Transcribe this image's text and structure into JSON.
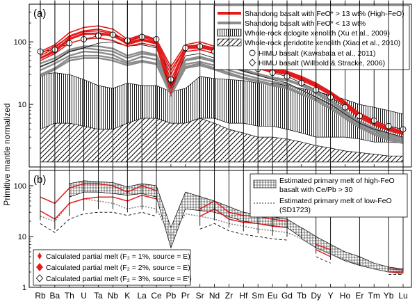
{
  "figure": {
    "ylabel": "Primitive mantle normalized",
    "elements": [
      "Rb",
      "Ba",
      "Th",
      "U",
      "Ta",
      "Nb",
      "K",
      "La",
      "Ce",
      "Pb",
      "Pr",
      "Sr",
      "Nd",
      "Zr",
      "Hf",
      "Sm",
      "Eu",
      "Gd",
      "Tb",
      "Dy",
      "Y",
      "Ho",
      "Er",
      "Tm",
      "Yb",
      "Lu"
    ]
  },
  "chart_data": [
    {
      "panel": "(a)",
      "type": "line",
      "scale": "log",
      "ylim": [
        1,
        400
      ],
      "yticks": [
        {
          "value": 10,
          "label": "10"
        },
        {
          "value": 100,
          "label": "100"
        }
      ],
      "legend_position": "top-right",
      "legend": [
        {
          "key": "high",
          "label": "Shandong basalt with FeO* > 13 wt% (High-FeO)"
        },
        {
          "key": "low",
          "label": "Shandong basalt with FeO* < 13 wt%"
        },
        {
          "key": "eclogite",
          "label": "Whole-rock eclogite xenolith (Xu et al., 2009)"
        },
        {
          "key": "peridotite",
          "label": "Whole-rock peridotite xenolith (Xiao et al., 2010)"
        },
        {
          "key": "himu_k",
          "label": "HIMU basalt (Kawabata et al., 2011)"
        },
        {
          "key": "himu_w",
          "label": "HIMU basalt (Willbold & Stracke, 2006)"
        }
      ],
      "series": {
        "high": [
          [
            55,
            70,
            110,
            135,
            135,
            125,
            95,
            110,
            95,
            20,
            80,
            85,
            75,
            55,
            45,
            40,
            35,
            32,
            26,
            20,
            15,
            10,
            6.5,
            5,
            4,
            3.5
          ],
          [
            60,
            80,
            125,
            150,
            160,
            140,
            100,
            120,
            100,
            30,
            85,
            90,
            80,
            60,
            48,
            42,
            36,
            33,
            27,
            21,
            16,
            11,
            7,
            5.5,
            4.3,
            3.6
          ],
          [
            50,
            65,
            95,
            110,
            115,
            105,
            85,
            95,
            85,
            15,
            70,
            75,
            65,
            50,
            42,
            37,
            33,
            30,
            24,
            19,
            14,
            9.5,
            6,
            4.7,
            3.8,
            3.3
          ],
          [
            70,
            90,
            140,
            170,
            180,
            160,
            110,
            130,
            110,
            40,
            90,
            100,
            85,
            62,
            50,
            44,
            38,
            34,
            28,
            22,
            16,
            11,
            7.2,
            5.6,
            4.4,
            3.7
          ],
          [
            55,
            75,
            115,
            130,
            140,
            130,
            90,
            105,
            92,
            25,
            78,
            80,
            72,
            52,
            44,
            39,
            34,
            31,
            25,
            20,
            15,
            10,
            6.3,
            4.9,
            3.9,
            3.4
          ],
          [
            65,
            85,
            120,
            145,
            150,
            135,
            105,
            125,
            105,
            35,
            82,
            88,
            78,
            57,
            46,
            41,
            35,
            32,
            26,
            21,
            15.5,
            10.5,
            6.8,
            5.2,
            4.1,
            3.5
          ]
        ],
        "low": [
          [
            40,
            50,
            70,
            80,
            75,
            70,
            55,
            65,
            60,
            18,
            50,
            55,
            48,
            40,
            34,
            30,
            26,
            24,
            20,
            15,
            11,
            7.5,
            5,
            4,
            3.2,
            2.8
          ],
          [
            30,
            38,
            55,
            60,
            60,
            55,
            45,
            50,
            45,
            15,
            40,
            45,
            38,
            32,
            27,
            24,
            21,
            19,
            15,
            12,
            9,
            6.5,
            4.5,
            3.5,
            2.9,
            2.5
          ],
          [
            35,
            45,
            60,
            70,
            68,
            62,
            48,
            58,
            52,
            17,
            44,
            48,
            42,
            35,
            30,
            26,
            23,
            21,
            17,
            13,
            10,
            7,
            4.8,
            3.8,
            3,
            2.6
          ],
          [
            45,
            55,
            75,
            85,
            85,
            78,
            60,
            70,
            62,
            20,
            52,
            58,
            50,
            42,
            36,
            31,
            27,
            25,
            21,
            16,
            12,
            8,
            5.3,
            4.2,
            3.4,
            2.9
          ],
          [
            28,
            36,
            50,
            55,
            55,
            50,
            42,
            48,
            44,
            14,
            38,
            42,
            36,
            30,
            26,
            23,
            20,
            18,
            14.5,
            11.5,
            8.5,
            6,
            4.2,
            3.3,
            2.7,
            2.4
          ]
        ],
        "himu_k": [
          70,
          75,
          95,
          110,
          125,
          130,
          105,
          120,
          110,
          25,
          80,
          85,
          70,
          50,
          42,
          37,
          32,
          28,
          22,
          17,
          13,
          9,
          6.5,
          5.5,
          4.5,
          4
        ],
        "himu_w": [
          40,
          50,
          70,
          80,
          95,
          100,
          85,
          90,
          80,
          18,
          60,
          65,
          55,
          40,
          34,
          29,
          25,
          22,
          17,
          13,
          10,
          7,
          5,
          4,
          3.5,
          3
        ],
        "eclogite_band": {
          "upper": [
            30,
            32,
            30,
            25,
            20,
            18,
            22,
            20,
            20,
            16,
            18,
            28,
            26,
            25,
            24,
            22,
            22,
            20,
            18,
            16,
            14,
            12,
            10,
            9,
            8,
            7
          ],
          "lower": [
            3,
            3.5,
            4,
            4,
            4,
            4,
            5,
            5,
            5,
            4,
            5,
            6,
            6,
            5,
            5,
            4.5,
            4.5,
            4,
            3.5,
            3,
            3,
            3,
            2.8,
            2.5,
            2.5,
            2.4
          ]
        },
        "peridotite_band": {
          "upper": [
            4,
            5,
            5,
            4.5,
            4,
            4,
            5,
            6,
            6,
            5,
            5,
            6,
            5,
            4,
            3.5,
            3,
            3,
            2.8,
            2.5,
            2.2,
            2,
            1.8,
            1.7,
            1.6,
            1.5,
            1.5
          ],
          "lower": [
            1.2,
            1.2,
            1.2,
            1.2,
            1.2,
            1.2,
            1.2,
            1.2,
            1.2,
            1.2,
            1.2,
            1.2,
            1.2,
            1.2,
            1.2,
            1.2,
            1.2,
            1.2,
            1.2,
            1.2,
            1.2,
            1.2,
            1.2,
            1.2,
            1.2,
            1.2
          ]
        }
      }
    },
    {
      "panel": "(b)",
      "type": "line",
      "scale": "log",
      "ylim": [
        1,
        200
      ],
      "yticks": [
        {
          "value": 1,
          "label": "1"
        },
        {
          "value": 10,
          "label": "10"
        },
        {
          "value": 100,
          "label": "100"
        }
      ],
      "legend_top": [
        {
          "key": "band",
          "label_lines": [
            "Estimated primary melt of high-FeO",
            "basalt with Ce/Pb > 30"
          ]
        },
        {
          "key": "dotted",
          "label_lines": [
            "Estimated primary melt of low-FeO",
            "(SD1723)"
          ]
        }
      ],
      "legend_bottom": [
        {
          "key": "f1",
          "label": "Calculated partial melt (F₂ = 1%, source = E)"
        },
        {
          "key": "f2",
          "label": "Calculated partial melt (F₂ = 2%, source = E)"
        },
        {
          "key": "f3",
          "label": "Calculated partial melt (F₂ = 3%, source = E')"
        }
      ],
      "series": {
        "band_upper": [
          null,
          null,
          110,
          125,
          120,
          115,
          95,
          110,
          100,
          15,
          75,
          null,
          50,
          null,
          30,
          27,
          null,
          22,
          null,
          10,
          7,
          null,
          null,
          null,
          null,
          null
        ],
        "band_lower": [
          null,
          null,
          60,
          75,
          75,
          70,
          65,
          70,
          60,
          6,
          35,
          null,
          30,
          null,
          20,
          18,
          null,
          15,
          null,
          6,
          4.5,
          null,
          null,
          null,
          null,
          null
        ],
        "band_tail_upper": [
          null,
          null,
          null,
          null,
          null,
          null,
          null,
          null,
          null,
          null,
          null,
          null,
          null,
          null,
          null,
          null,
          null,
          null,
          15,
          10,
          7,
          5,
          4,
          3,
          2.5,
          2.3
        ],
        "band_tail_lower": [
          null,
          null,
          null,
          null,
          null,
          null,
          null,
          null,
          null,
          null,
          null,
          null,
          null,
          null,
          null,
          null,
          null,
          null,
          9,
          6,
          4.5,
          3.3,
          2.7,
          2.3,
          2,
          1.9
        ],
        "dotted": [
          25,
          20,
          45,
          55,
          50,
          45,
          35,
          40,
          35,
          10,
          28,
          25,
          22,
          18,
          16,
          14,
          13,
          12,
          9,
          6,
          4.5,
          3.5,
          2.8,
          2.3,
          2,
          1.8
        ],
        "f1": [
          60,
          45,
          90,
          110,
          110,
          100,
          75,
          100,
          80,
          null,
          null,
          35,
          50,
          30,
          26,
          25,
          22,
          20,
          null,
          7,
          5.5,
          null,
          3,
          null,
          2.3,
          2.2
        ],
        "f2": [
          32,
          22,
          45,
          55,
          60,
          60,
          50,
          65,
          55,
          null,
          null,
          25,
          35,
          22,
          19,
          18,
          16,
          15,
          null,
          5.5,
          4,
          null,
          2.6,
          null,
          2,
          2
        ],
        "f3": [
          18,
          12,
          22,
          28,
          30,
          30,
          26,
          30,
          25,
          null,
          null,
          14,
          18,
          13,
          11,
          10,
          9,
          8.5,
          null,
          4,
          3,
          null,
          2.3,
          null,
          1.8,
          1.8
        ]
      }
    }
  ]
}
